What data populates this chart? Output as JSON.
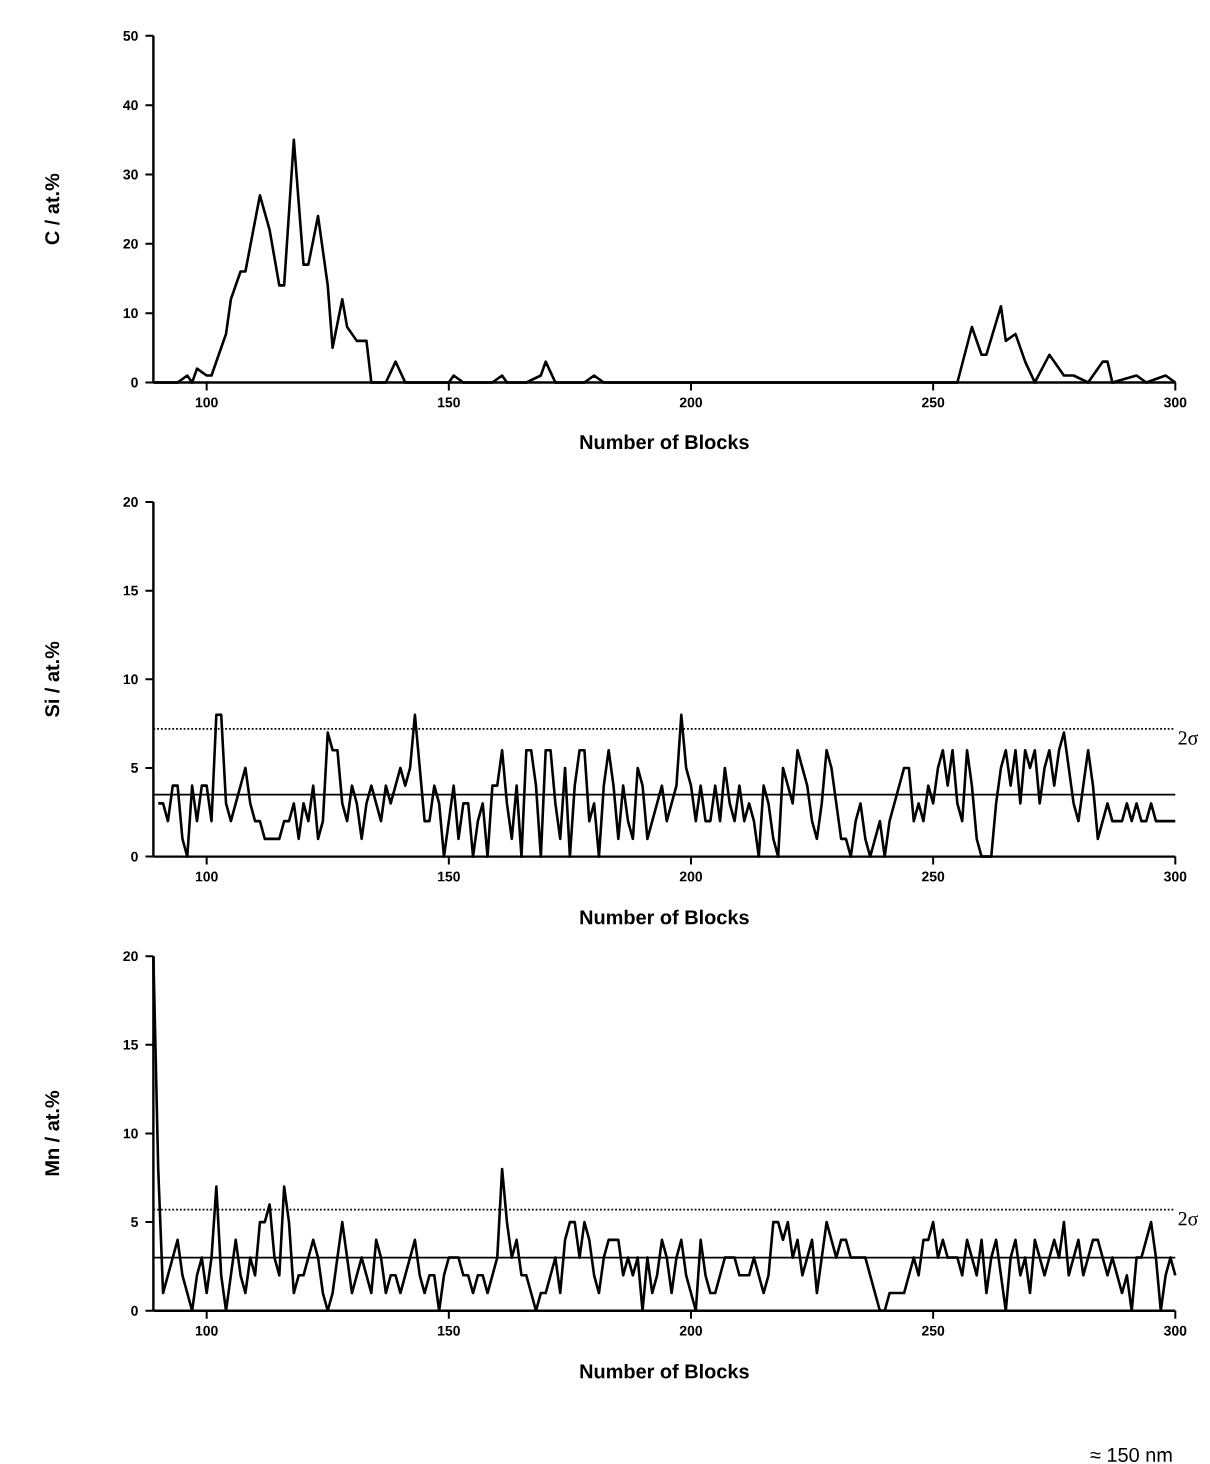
{
  "chart_data": [
    {
      "type": "line",
      "xlabel": "Number of Blocks",
      "ylabel": "C / at.%",
      "xlim": [
        89,
        300
      ],
      "ylim": [
        0,
        50
      ],
      "xticks": [
        100,
        150,
        200,
        250,
        300
      ],
      "yticks": [
        0,
        10,
        20,
        30,
        40,
        50
      ],
      "series": [
        {
          "color": "#000000",
          "x": [
            89,
            90,
            94,
            96,
            97,
            98,
            100,
            101,
            103,
            104,
            105,
            107,
            108,
            111,
            113,
            115,
            116,
            118,
            120,
            121,
            123,
            125,
            126,
            128,
            129,
            131,
            132,
            133,
            134,
            137,
            139,
            141,
            150,
            151,
            153,
            159,
            161,
            162,
            166,
            169,
            170,
            172,
            178,
            180,
            182,
            191,
            255,
            258,
            260,
            261,
            264,
            265,
            267,
            269,
            271,
            274,
            277,
            279,
            282,
            285,
            286,
            287,
            292,
            294,
            298,
            300
          ],
          "values": [
            0,
            0,
            0,
            1,
            0,
            2,
            1,
            1,
            5,
            7,
            12,
            16,
            16,
            27,
            22,
            14,
            14,
            35,
            17,
            17,
            24,
            14,
            5,
            12,
            8,
            6,
            6,
            6,
            0,
            0,
            3,
            0,
            0,
            1,
            0,
            0,
            1,
            0,
            0,
            1,
            3,
            0,
            0,
            1,
            0,
            0,
            0,
            8,
            4,
            4,
            11,
            6,
            7,
            3,
            0,
            4,
            1,
            1,
            0,
            3,
            3,
            0,
            1,
            0,
            1,
            0
          ]
        }
      ]
    },
    {
      "type": "line",
      "xlabel": "Number of Blocks",
      "ylabel": "Si / at.%",
      "xlim": [
        89,
        300
      ],
      "ylim": [
        0,
        20
      ],
      "xticks": [
        100,
        150,
        200,
        250,
        300
      ],
      "yticks": [
        0,
        5,
        10,
        15,
        20
      ],
      "ref_lines": [
        {
          "axis": "y",
          "value": 3.5,
          "color": "#000000",
          "line_style": "solid"
        },
        {
          "axis": "y",
          "value": 7.2,
          "color": "#000000",
          "line_style": "dotted"
        }
      ],
      "annotations": [
        "2σ"
      ],
      "series": [
        {
          "color": "#000000",
          "x": [
            90,
            91,
            92,
            93,
            94,
            95,
            96,
            97,
            98,
            99,
            100,
            101,
            102,
            103,
            104,
            105,
            106,
            107,
            108,
            109,
            110,
            111,
            112,
            113,
            114,
            115,
            116,
            117,
            118,
            119,
            120,
            121,
            122,
            123,
            124,
            125,
            126,
            127,
            128,
            129,
            130,
            131,
            132,
            133,
            134,
            135,
            136,
            137,
            138,
            139,
            140,
            141,
            142,
            143,
            144,
            145,
            146,
            147,
            148,
            149,
            150,
            151,
            152,
            153,
            154,
            155,
            156,
            157,
            158,
            159,
            160,
            161,
            162,
            163,
            164,
            165,
            166,
            167,
            168,
            169,
            170,
            171,
            172,
            173,
            174,
            175,
            176,
            177,
            178,
            179,
            180,
            181,
            182,
            183,
            184,
            185,
            186,
            187,
            188,
            189,
            190,
            191,
            192,
            193,
            194,
            195,
            196,
            197,
            198,
            199,
            200,
            201,
            202,
            203,
            204,
            205,
            206,
            207,
            208,
            209,
            210,
            211,
            212,
            213,
            214,
            215,
            216,
            217,
            218,
            219,
            220,
            221,
            222,
            223,
            224,
            225,
            226,
            227,
            228,
            229,
            230,
            231,
            232,
            233,
            234,
            235,
            236,
            237,
            238,
            239,
            240,
            241,
            242,
            243,
            244,
            245,
            246,
            247,
            248,
            249,
            250,
            251,
            252,
            253,
            254,
            255,
            256,
            257,
            258,
            259,
            260,
            261,
            262,
            263,
            264,
            265,
            266,
            267,
            268,
            269,
            270,
            271,
            272,
            273,
            274,
            275,
            276,
            277,
            278,
            279,
            280,
            281,
            282,
            283,
            284,
            285,
            286,
            287,
            288,
            289,
            290,
            291,
            292,
            293,
            294,
            295,
            296,
            297,
            298,
            299,
            300
          ],
          "values": [
            3,
            3,
            2,
            4,
            4,
            1,
            0,
            4,
            2,
            4,
            4,
            2,
            8,
            8,
            3,
            2,
            3,
            4,
            5,
            3,
            2,
            2,
            1,
            1,
            1,
            1,
            2,
            2,
            3,
            1,
            3,
            2,
            4,
            1,
            2,
            7,
            6,
            6,
            3,
            2,
            4,
            3,
            1,
            3,
            4,
            3,
            2,
            4,
            3,
            4,
            5,
            4,
            5,
            8,
            5,
            2,
            2,
            4,
            3,
            0,
            2,
            4,
            1,
            3,
            3,
            0,
            2,
            3,
            0,
            4,
            4,
            6,
            3,
            1,
            4,
            0,
            6,
            6,
            4,
            0,
            6,
            6,
            3,
            1,
            5,
            0,
            4,
            6,
            6,
            2,
            3,
            0,
            4,
            6,
            4,
            1,
            4,
            2,
            1,
            5,
            4,
            1,
            2,
            3,
            4,
            2,
            3,
            4,
            8,
            5,
            4,
            2,
            4,
            2,
            2,
            4,
            2,
            5,
            3,
            2,
            4,
            2,
            3,
            2,
            0,
            4,
            3,
            1,
            0,
            5,
            4,
            3,
            6,
            5,
            4,
            2,
            1,
            3,
            6,
            5,
            3,
            1,
            1,
            0,
            2,
            3,
            1,
            0,
            1,
            2,
            0,
            2,
            3,
            4,
            5,
            5,
            2,
            3,
            2,
            4,
            3,
            5,
            6,
            4,
            6,
            3,
            2,
            6,
            4,
            1,
            0,
            0,
            0,
            3,
            5,
            6,
            4,
            6,
            3,
            6,
            5,
            6,
            3,
            5,
            6,
            4,
            6,
            7,
            5,
            3,
            2,
            4,
            6,
            4,
            1,
            2,
            3,
            2,
            2,
            2,
            3,
            2,
            3,
            2,
            2,
            3,
            2,
            2,
            2,
            2,
            2
          ]
        }
      ]
    },
    {
      "type": "line",
      "xlabel": "Number of Blocks",
      "ylabel": "Mn / at.%",
      "xlim": [
        89,
        300
      ],
      "ylim": [
        0,
        20
      ],
      "xticks": [
        100,
        150,
        200,
        250,
        300
      ],
      "yticks": [
        0,
        5,
        10,
        15,
        20
      ],
      "ref_lines": [
        {
          "axis": "y",
          "value": 3.0,
          "color": "#000000",
          "line_style": "solid"
        },
        {
          "axis": "y",
          "value": 5.7,
          "color": "#000000",
          "line_style": "dotted"
        }
      ],
      "annotations": [
        "2σ",
        "≈ 150 nm"
      ],
      "series": [
        {
          "color": "#000000",
          "x": [
            89,
            90,
            91,
            92,
            93,
            94,
            95,
            96,
            97,
            98,
            99,
            100,
            101,
            102,
            103,
            104,
            105,
            106,
            107,
            108,
            109,
            110,
            111,
            112,
            113,
            114,
            115,
            116,
            117,
            118,
            119,
            120,
            121,
            122,
            123,
            124,
            125,
            126,
            127,
            128,
            129,
            130,
            131,
            132,
            133,
            134,
            135,
            136,
            137,
            138,
            139,
            140,
            141,
            142,
            143,
            144,
            145,
            146,
            147,
            148,
            149,
            150,
            151,
            152,
            153,
            154,
            155,
            156,
            157,
            158,
            159,
            160,
            161,
            162,
            163,
            164,
            165,
            166,
            167,
            168,
            169,
            170,
            171,
            172,
            173,
            174,
            175,
            176,
            177,
            178,
            179,
            180,
            181,
            182,
            183,
            184,
            185,
            186,
            187,
            188,
            189,
            190,
            191,
            192,
            193,
            194,
            195,
            196,
            197,
            198,
            199,
            200,
            201,
            202,
            203,
            204,
            205,
            206,
            207,
            208,
            209,
            210,
            211,
            212,
            213,
            214,
            215,
            216,
            217,
            218,
            219,
            220,
            221,
            222,
            223,
            224,
            225,
            226,
            227,
            228,
            229,
            230,
            231,
            232,
            233,
            234,
            235,
            236,
            237,
            238,
            239,
            240,
            241,
            242,
            243,
            244,
            245,
            246,
            247,
            248,
            249,
            250,
            251,
            252,
            253,
            254,
            255,
            256,
            257,
            258,
            259,
            260,
            261,
            262,
            263,
            264,
            265,
            266,
            267,
            268,
            269,
            270,
            271,
            272,
            273,
            274,
            275,
            276,
            277,
            278,
            279,
            280,
            281,
            282,
            283,
            284,
            285,
            286,
            287,
            288,
            289,
            290,
            291,
            292,
            293,
            294,
            295,
            296,
            297,
            298,
            299,
            300
          ],
          "values": [
            20,
            8,
            1,
            2,
            3,
            4,
            2,
            1,
            0,
            2,
            3,
            1,
            3,
            7,
            2,
            0,
            2,
            4,
            2,
            1,
            3,
            2,
            5,
            5,
            6,
            3,
            2,
            7,
            5,
            1,
            2,
            2,
            3,
            4,
            3,
            1,
            0,
            1,
            3,
            5,
            3,
            1,
            2,
            3,
            2,
            1,
            4,
            3,
            1,
            2,
            2,
            1,
            2,
            3,
            4,
            2,
            1,
            2,
            2,
            0,
            2,
            3,
            3,
            3,
            2,
            2,
            1,
            2,
            2,
            1,
            2,
            3,
            8,
            5,
            3,
            4,
            2,
            2,
            1,
            0,
            1,
            1,
            2,
            3,
            1,
            4,
            5,
            5,
            3,
            5,
            4,
            2,
            1,
            3,
            4,
            4,
            4,
            2,
            3,
            2,
            3,
            0,
            3,
            1,
            2,
            4,
            3,
            1,
            3,
            4,
            2,
            1,
            0,
            4,
            2,
            1,
            1,
            2,
            3,
            3,
            3,
            2,
            2,
            2,
            3,
            2,
            1,
            2,
            5,
            5,
            4,
            5,
            3,
            4,
            2,
            3,
            4,
            1,
            3,
            5,
            4,
            3,
            4,
            4,
            3,
            3,
            3,
            3,
            2,
            1,
            0,
            0,
            1,
            1,
            1,
            1,
            2,
            3,
            2,
            4,
            4,
            5,
            3,
            4,
            3,
            3,
            3,
            2,
            4,
            3,
            2,
            4,
            1,
            3,
            4,
            2,
            0,
            3,
            4,
            2,
            3,
            1,
            4,
            3,
            2,
            3,
            4,
            3,
            5,
            2,
            3,
            4,
            2,
            3,
            4,
            4,
            3,
            2,
            3,
            2,
            1,
            2,
            0,
            3,
            3,
            4,
            5,
            3,
            0,
            2,
            3,
            2
          ]
        }
      ]
    }
  ]
}
